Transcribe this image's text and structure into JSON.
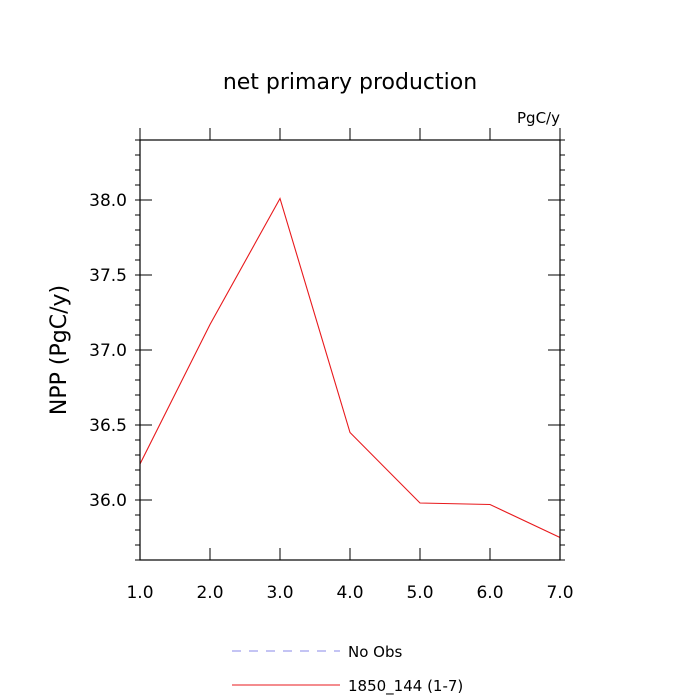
{
  "chart_data": {
    "type": "line",
    "title": "net primary production",
    "units": "PgC/y",
    "xlabel": "",
    "ylabel": "NPP  (PgC/y)",
    "xlim": [
      1.0,
      7.0
    ],
    "ylim": [
      35.6,
      38.4
    ],
    "x_ticks": [
      "1.0",
      "2.0",
      "3.0",
      "4.0",
      "5.0",
      "6.0",
      "7.0"
    ],
    "y_ticks": [
      "36.0",
      "36.5",
      "37.0",
      "37.5",
      "38.0"
    ],
    "x_tick_values": [
      1,
      2,
      3,
      4,
      5,
      6,
      7
    ],
    "y_tick_values": [
      36.0,
      36.5,
      37.0,
      37.5,
      38.0
    ],
    "grid": false,
    "legend_position": "bottom",
    "series": [
      {
        "name": "1850_144 (1-7)",
        "color": "#e8191c",
        "style": "solid",
        "x": [
          1,
          2,
          3,
          4,
          5,
          6,
          7
        ],
        "y": [
          36.24,
          37.17,
          38.01,
          36.45,
          35.98,
          35.97,
          35.75
        ]
      }
    ],
    "legend": [
      {
        "label": "No Obs",
        "color": "#8a8aea",
        "style": "dashed"
      },
      {
        "label": "1850_144 (1-7)",
        "color": "#e8191c",
        "style": "solid"
      }
    ]
  }
}
